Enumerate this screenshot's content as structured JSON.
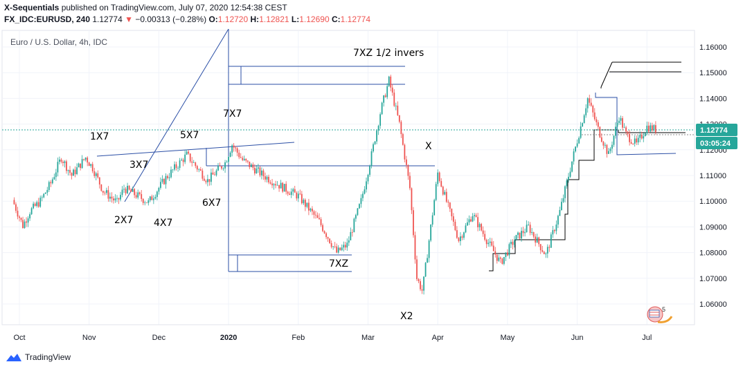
{
  "header": {
    "author": "X-Sequentials",
    "published_text": " published on TradingView.com, July 07, 2020 12:54:38 CEST",
    "symbol": "FX_IDC:EURUSD, 240",
    "last": "1.12774",
    "arrow": "▼",
    "change": "−0.00313 (−0.28%)",
    "o_label": "O:",
    "o_val": "1.12720",
    "h_label": "H:",
    "h_val": "1.12821",
    "l_label": "L:",
    "l_val": "1.12690",
    "c_label": "C:",
    "c_val": "1.12774"
  },
  "legend": "Euro / U.S. Dollar, 4h, IDC",
  "footer": {
    "brand": "TradingView"
  },
  "chart_data": {
    "type": "candlestick",
    "title": "Euro / U.S. Dollar, 4h, IDC",
    "y_ticks": [
      "1.16000",
      "1.15000",
      "1.14000",
      "1.13000",
      "1.12000",
      "1.11000",
      "1.10000",
      "1.09000",
      "1.08000",
      "1.07000",
      "1.06000"
    ],
    "ylim": [
      1.0535,
      1.163
    ],
    "x_ticks": [
      {
        "label": "Oct",
        "t": 0
      },
      {
        "label": "Nov",
        "t": 1
      },
      {
        "label": "Dec",
        "t": 2
      },
      {
        "label": "2020",
        "t": 3
      },
      {
        "label": "Feb",
        "t": 4
      },
      {
        "label": "Mar",
        "t": 5
      },
      {
        "label": "Apr",
        "t": 6
      },
      {
        "label": "May",
        "t": 7
      },
      {
        "label": "Jun",
        "t": 8
      },
      {
        "label": "Jul",
        "t": 9
      }
    ],
    "price_path": [
      [
        -0.1,
        1.1005
      ],
      [
        0.05,
        1.0905
      ],
      [
        0.15,
        1.096
      ],
      [
        0.3,
        1.1
      ],
      [
        0.45,
        1.107
      ],
      [
        0.6,
        1.117
      ],
      [
        0.75,
        1.11
      ],
      [
        0.95,
        1.117
      ],
      [
        1.05,
        1.113
      ],
      [
        1.2,
        1.104
      ],
      [
        1.4,
        1.0995
      ],
      [
        1.5,
        1.105
      ],
      [
        1.7,
        1.102
      ],
      [
        1.85,
        1.0995
      ],
      [
        2.1,
        1.109
      ],
      [
        2.4,
        1.118
      ],
      [
        2.7,
        1.108
      ],
      [
        2.95,
        1.115
      ],
      [
        3.05,
        1.122
      ],
      [
        3.2,
        1.116
      ],
      [
        3.5,
        1.11
      ],
      [
        3.8,
        1.105
      ],
      [
        4.0,
        1.102
      ],
      [
        4.3,
        1.092
      ],
      [
        4.55,
        1.08
      ],
      [
        4.7,
        1.083
      ],
      [
        4.9,
        1.1
      ],
      [
        5.05,
        1.118
      ],
      [
        5.18,
        1.135
      ],
      [
        5.3,
        1.147
      ],
      [
        5.45,
        1.13
      ],
      [
        5.6,
        1.105
      ],
      [
        5.7,
        1.07
      ],
      [
        5.78,
        1.065
      ],
      [
        5.9,
        1.09
      ],
      [
        6.0,
        1.111
      ],
      [
        6.1,
        1.102
      ],
      [
        6.3,
        1.085
      ],
      [
        6.5,
        1.095
      ],
      [
        6.7,
        1.085
      ],
      [
        6.9,
        1.076
      ],
      [
        7.1,
        1.085
      ],
      [
        7.3,
        1.09
      ],
      [
        7.55,
        1.079
      ],
      [
        7.75,
        1.096
      ],
      [
        7.92,
        1.115
      ],
      [
        8.05,
        1.129
      ],
      [
        8.15,
        1.14
      ],
      [
        8.3,
        1.128
      ],
      [
        8.45,
        1.118
      ],
      [
        8.6,
        1.133
      ],
      [
        8.7,
        1.126
      ],
      [
        8.85,
        1.122
      ],
      [
        9.0,
        1.129
      ],
      [
        9.15,
        1.1277
      ]
    ],
    "last_price": 1.12774,
    "price_label": "1.12774",
    "timer_label": "03:05:24",
    "annotations": [
      "1X7",
      "2X7",
      "3X7",
      "4X7",
      "5X7",
      "6X7",
      "7X7",
      "7XZ 1/2 invers",
      "7XZ",
      "X",
      "X2"
    ]
  }
}
